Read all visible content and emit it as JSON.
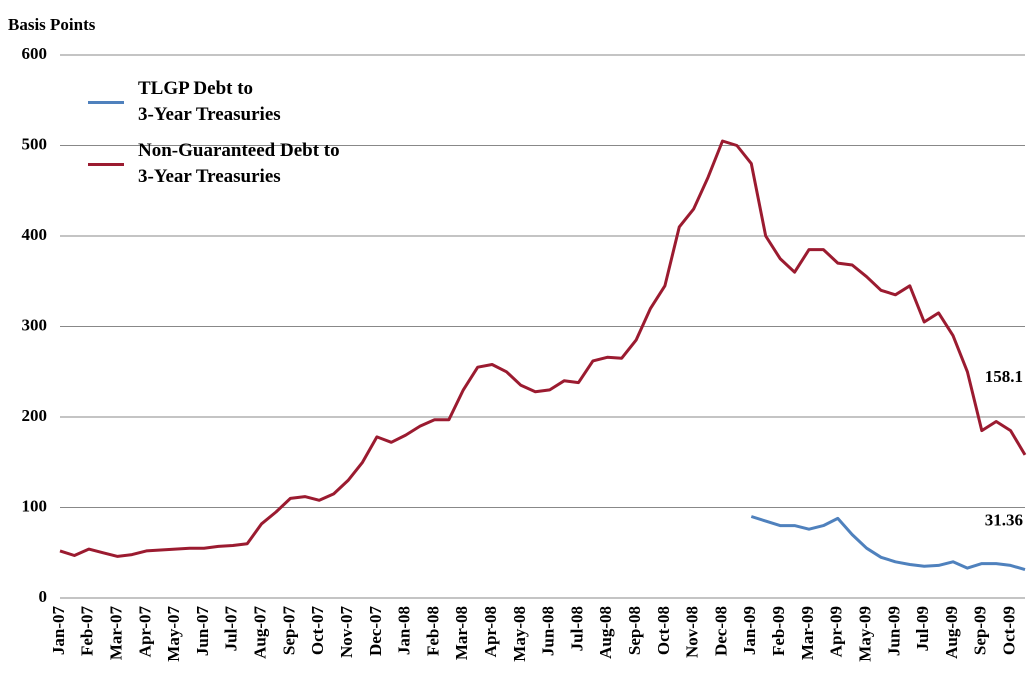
{
  "chart_data": {
    "type": "line",
    "y_label": "Basis Points",
    "categories": [
      "Jan-07",
      null,
      "Feb-07",
      null,
      "Mar-07",
      null,
      "Apr-07",
      null,
      "May-07",
      null,
      "Jun-07",
      null,
      "Jul-07",
      null,
      "Aug-07",
      null,
      "Sep-07",
      null,
      "Oct-07",
      null,
      "Nov-07",
      null,
      "Dec-07",
      null,
      "Jan-08",
      null,
      "Feb-08",
      null,
      "Mar-08",
      null,
      "Apr-08",
      null,
      "May-08",
      null,
      "Jun-08",
      null,
      "Jul-08",
      null,
      "Aug-08",
      null,
      "Sep-08",
      null,
      "Oct-08",
      null,
      "Nov-08",
      null,
      "Dec-08",
      null,
      "Jan-09",
      null,
      "Feb-09",
      null,
      "Mar-09",
      null,
      "Apr-09",
      null,
      "May-09",
      null,
      "Jun-09",
      null,
      "Jul-09",
      null,
      "Aug-09",
      null,
      "Sep-09",
      null,
      "Oct-09",
      null
    ],
    "series": [
      {
        "name": "TLGP Debt to\n3-Year Treasuries",
        "color": "#4f81bd",
        "values": [
          null,
          null,
          null,
          null,
          null,
          null,
          null,
          null,
          null,
          null,
          null,
          null,
          null,
          null,
          null,
          null,
          null,
          null,
          null,
          null,
          null,
          null,
          null,
          null,
          null,
          null,
          null,
          null,
          null,
          null,
          null,
          null,
          null,
          null,
          null,
          null,
          null,
          null,
          null,
          null,
          null,
          null,
          null,
          null,
          null,
          null,
          null,
          null,
          90,
          85,
          80,
          80,
          76,
          80,
          88,
          70,
          55,
          45,
          40,
          37,
          35,
          36,
          40,
          33,
          38,
          38,
          36,
          31.36
        ]
      },
      {
        "name": "Non-Guaranteed Debt to\n3-Year  Treasuries",
        "color": "#9b1b30",
        "values": [
          52,
          47,
          54,
          50,
          46,
          48,
          52,
          53,
          54,
          55,
          55,
          57,
          58,
          60,
          82,
          95,
          110,
          112,
          108,
          115,
          130,
          150,
          178,
          172,
          180,
          190,
          197,
          197,
          230,
          255,
          258,
          250,
          235,
          228,
          230,
          240,
          238,
          262,
          266,
          265,
          285,
          320,
          345,
          410,
          430,
          465,
          505,
          500,
          480,
          400,
          375,
          360,
          385,
          385,
          370,
          368,
          355,
          340,
          335,
          345,
          305,
          315,
          290,
          250,
          185,
          195,
          185,
          158.1
        ]
      }
    ],
    "end_labels": true,
    "ylim": [
      0,
      600
    ],
    "yticks": [
      0,
      100,
      200,
      300,
      400,
      500,
      600
    ],
    "grid": true,
    "legend": "upper left"
  }
}
